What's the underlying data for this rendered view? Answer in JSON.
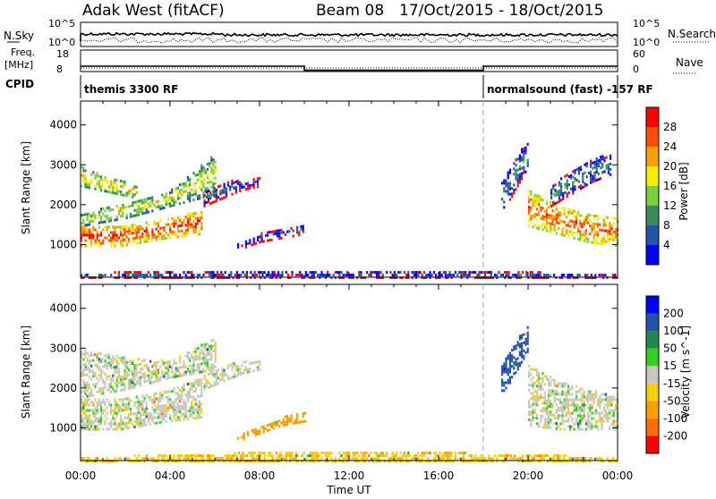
{
  "header": {
    "site": "Adak West (fitACF)",
    "beam": "Beam 08",
    "dates": "17/Oct/2015 - 18/Oct/2015"
  },
  "status": {
    "nsky_label": "N.Sky",
    "nsky_ticks": [
      "10^5",
      "10^0"
    ],
    "nsearch_label": "N.Search",
    "freq_label": "Freq.",
    "freq_unit": "[MHz]",
    "freq_ticks": [
      "18",
      "8"
    ],
    "nave_ticks": [
      "60",
      "0"
    ],
    "nave_label": "Nave",
    "cpid_label": "CPID",
    "cpid_segments": [
      {
        "start_h": 0,
        "end_h": 18,
        "text": "themis 3300 RF"
      },
      {
        "start_h": 18,
        "end_h": 24,
        "text": "normalsound (fast) -157 RF"
      }
    ],
    "freq_series_mhz": [
      [
        0,
        10.5
      ],
      [
        10,
        10.5
      ],
      [
        10,
        8.6
      ],
      [
        18,
        8.6
      ],
      [
        18,
        10.5
      ],
      [
        24,
        10.5
      ]
    ],
    "nave_series": [
      [
        0,
        10
      ],
      [
        24,
        10
      ]
    ]
  },
  "axes": {
    "time": {
      "label": "Time UT",
      "ticks": [
        "00:00",
        "04:00",
        "08:00",
        "12:00",
        "16:00",
        "20:00",
        "00:00"
      ],
      "range_h": [
        0,
        24
      ]
    },
    "range": {
      "label": "Slant Range [km]",
      "ticks": [
        "1000",
        "2000",
        "3000",
        "4000"
      ],
      "range_km": [
        180,
        4600
      ]
    }
  },
  "chart_data": [
    {
      "type": "heatmap",
      "title": "Power",
      "xlabel": "Time UT",
      "ylabel": "Slant Range [km]",
      "xlim_h": [
        0,
        24
      ],
      "ylim_km": [
        180,
        4600
      ],
      "colorbar": {
        "label": "Power [dB]",
        "ticks": [
          "28",
          "24",
          "20",
          "16",
          "12",
          "8",
          "4"
        ],
        "levels": [
          0,
          4,
          8,
          12,
          16,
          20,
          24,
          28,
          32
        ],
        "colors": [
          "#0000ff",
          "#2453a8",
          "#3a8a5a",
          "#7ccd40",
          "#f5ee00",
          "#f5a000",
          "#ff5000",
          "#ff0000"
        ]
      },
      "scatter_regions": [
        {
          "t": [
            0.0,
            5.4
          ],
          "r_lo": [
            1000,
            1000,
            1180,
            1300
          ],
          "r_hi": [
            1500,
            1500,
            1650,
            1900
          ],
          "db": 28
        },
        {
          "t": [
            0.0,
            6.0
          ],
          "r_lo": [
            1500,
            1700,
            2000,
            2300
          ],
          "r_hi": [
            1800,
            2100,
            2400,
            3300
          ],
          "db": 18
        },
        {
          "t": [
            0.0,
            2.5
          ],
          "r_lo": [
            2500,
            2400,
            2300,
            2200
          ],
          "r_hi": [
            3000,
            2800,
            2700,
            2500
          ],
          "db": 20
        },
        {
          "t": [
            5.5,
            8.0
          ],
          "r_lo": [
            2000,
            2200,
            2400,
            2500
          ],
          "r_hi": [
            2400,
            2600,
            2700,
            2700
          ],
          "db": 6
        },
        {
          "t": [
            7.0,
            10.0
          ],
          "r_lo": [
            900,
            1100,
            1200,
            1300
          ],
          "r_hi": [
            1100,
            1300,
            1450,
            1550
          ],
          "db": 6
        },
        {
          "t": [
            0.0,
            24.0
          ],
          "r_lo": [
            200,
            200,
            200,
            200
          ],
          "r_hi": [
            320,
            400,
            380,
            300
          ],
          "db": 6
        },
        {
          "t": [
            18.8,
            20.0
          ],
          "r_lo": [
            1900,
            2200,
            2600,
            3000
          ],
          "r_hi": [
            2600,
            3000,
            3400,
            3600
          ],
          "db": 10
        },
        {
          "t": [
            20.0,
            24.0
          ],
          "r_lo": [
            1500,
            1300,
            1100,
            1000
          ],
          "r_hi": [
            2400,
            2000,
            1800,
            1700
          ],
          "db": 26
        },
        {
          "t": [
            21.0,
            23.7
          ],
          "r_lo": [
            2000,
            2300,
            2600,
            2800
          ],
          "r_hi": [
            2500,
            2900,
            3200,
            3300
          ],
          "db": 10
        }
      ]
    },
    {
      "type": "heatmap",
      "title": "Velocity",
      "xlabel": "Time UT",
      "ylabel": "Slant Range [km]",
      "xlim_h": [
        0,
        24
      ],
      "ylim_km": [
        180,
        4600
      ],
      "colorbar": {
        "label": "Velocity [m s^-1]",
        "ticks": [
          "200",
          "100",
          "50",
          "15",
          "-15",
          "-50",
          "-100",
          "-200"
        ],
        "levels": [
          -300,
          -200,
          -100,
          -50,
          -15,
          15,
          50,
          100,
          200,
          300
        ],
        "colors": [
          "#ff0000",
          "#ff7000",
          "#f5a000",
          "#f5d000",
          "#c8c8c0",
          "#2fd020",
          "#1f8a50",
          "#2453a8",
          "#0000ff"
        ]
      },
      "scatter_regions": [
        {
          "t": [
            0.0,
            5.4
          ],
          "r_lo": [
            1000,
            1000,
            1180,
            1300
          ],
          "r_hi": [
            1800,
            1800,
            1950,
            2300
          ],
          "v": 0
        },
        {
          "t": [
            0.0,
            6.0
          ],
          "r_lo": [
            1800,
            2000,
            2300,
            2500
          ],
          "r_hi": [
            3000,
            2800,
            2700,
            3300
          ],
          "v": 0
        },
        {
          "t": [
            5.5,
            8.0
          ],
          "r_lo": [
            2000,
            2200,
            2400,
            2500
          ],
          "r_hi": [
            2400,
            2600,
            2700,
            2700
          ],
          "v": 0
        },
        {
          "t": [
            7.0,
            10.0
          ],
          "r_lo": [
            700,
            900,
            1100,
            1200
          ],
          "r_hi": [
            900,
            1100,
            1300,
            1450
          ],
          "v": -80
        },
        {
          "t": [
            0.0,
            24.0
          ],
          "r_lo": [
            200,
            200,
            200,
            200
          ],
          "r_hi": [
            300,
            420,
            420,
            300
          ],
          "v": -40
        },
        {
          "t": [
            18.8,
            20.0
          ],
          "r_lo": [
            1900,
            2200,
            2600,
            3000
          ],
          "r_hi": [
            2600,
            3000,
            3400,
            3600
          ],
          "v": 150
        },
        {
          "t": [
            20.0,
            24.0
          ],
          "r_lo": [
            1100,
            1000,
            1000,
            1000
          ],
          "r_hi": [
            2600,
            2200,
            2000,
            1800
          ],
          "v": 0
        }
      ]
    }
  ]
}
